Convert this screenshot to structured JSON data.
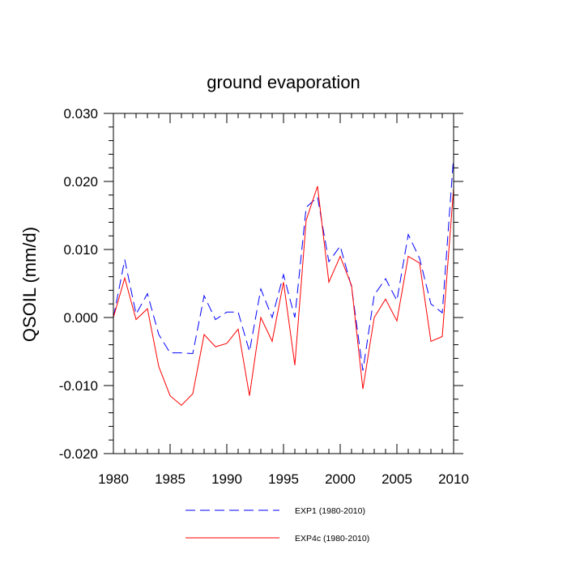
{
  "chart_data": {
    "type": "line",
    "title": "ground evaporation",
    "xlabel": "",
    "ylabel": "QSOIL  (mm/d)",
    "xlim": [
      1980,
      2010
    ],
    "ylim": [
      -0.02,
      0.03
    ],
    "x_ticks": [
      1980,
      1985,
      1990,
      1995,
      2000,
      2005,
      2010
    ],
    "x_tick_labels": [
      "1980",
      "1985",
      "1990",
      "1995",
      "2000",
      "2005",
      "2010"
    ],
    "y_ticks": [
      -0.02,
      -0.01,
      0.0,
      0.01,
      0.02,
      0.03
    ],
    "y_tick_labels": [
      "-0.020",
      "-0.010",
      "0.000",
      "0.010",
      "0.020",
      "0.030"
    ],
    "grid": false,
    "legend_position": "bottom-center",
    "x": [
      1980,
      1981,
      1982,
      1983,
      1984,
      1985,
      1986,
      1987,
      1988,
      1989,
      1990,
      1991,
      1992,
      1993,
      1994,
      1995,
      1996,
      1997,
      1998,
      1999,
      2000,
      2001,
      2002,
      2003,
      2004,
      2005,
      2006,
      2007,
      2008,
      2009,
      2010
    ],
    "series": [
      {
        "name": "EXP1 (1980-2010)",
        "color": "#0000ff",
        "style": "dashed",
        "values": [
          0.0,
          0.0085,
          0.0005,
          0.0035,
          -0.0025,
          -0.0052,
          -0.0052,
          -0.0053,
          0.0032,
          -0.0003,
          0.0008,
          0.0008,
          -0.005,
          0.0042,
          0.0,
          0.0063,
          0.0,
          0.0162,
          0.0177,
          0.0082,
          0.0105,
          0.0045,
          -0.0078,
          0.0033,
          0.0057,
          0.0025,
          0.0122,
          0.0087,
          0.002,
          0.0007,
          0.0237
        ]
      },
      {
        "name": "EXP4c (1980-2010)",
        "color": "#ff0000",
        "style": "solid",
        "values": [
          0.0,
          0.0058,
          -0.0003,
          0.0013,
          -0.0072,
          -0.0115,
          -0.0129,
          -0.0112,
          -0.0025,
          -0.0043,
          -0.0038,
          -0.0017,
          -0.0115,
          0.0,
          -0.0035,
          0.0052,
          -0.007,
          0.0143,
          0.0193,
          0.0052,
          0.009,
          0.0047,
          -0.0105,
          0.0,
          0.0027,
          -0.0005,
          0.009,
          0.008,
          -0.0035,
          -0.0028,
          0.019
        ]
      }
    ]
  }
}
